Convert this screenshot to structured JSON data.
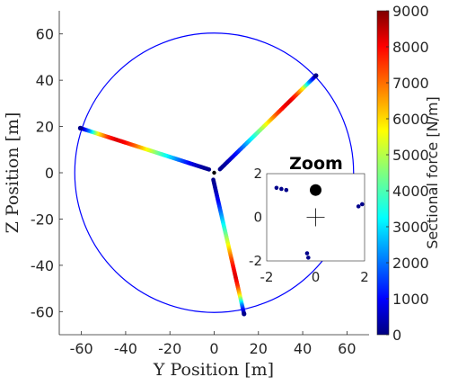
{
  "chart_data": [
    {
      "type": "scatter",
      "title": "",
      "xlabel": "Y Position [m]",
      "ylabel": "Z Position [m]",
      "xlim": [
        -70,
        70
      ],
      "ylim": [
        -70,
        70
      ],
      "xticks": [
        -60,
        -40,
        -20,
        0,
        20,
        40,
        60
      ],
      "yticks": [
        -60,
        -40,
        -20,
        0,
        20,
        40,
        60
      ],
      "xtick_labels": [
        "-60",
        "-40",
        "-20",
        "0",
        "20",
        "40",
        "60"
      ],
      "ytick_labels": [
        "-60",
        "-40",
        "-20",
        "0",
        "20",
        "40",
        "60"
      ],
      "rotor_circle": {
        "center": [
          0,
          0
        ],
        "radius": 63
      },
      "hub": [
        0,
        0
      ],
      "blades": [
        {
          "start": [
            -0.4,
            -3.0
          ],
          "end": [
            13.5,
            -61.0
          ],
          "force": [
            100,
            300,
            800,
            1500,
            2400,
            3300,
            4200,
            5200,
            6200,
            7200,
            7900,
            8200,
            7400,
            5800,
            2500,
            300
          ]
        },
        {
          "start": [
            2.6,
            1.5
          ],
          "end": [
            46.0,
            42.0
          ],
          "force": [
            100,
            300,
            800,
            1500,
            2400,
            3300,
            4200,
            5200,
            6200,
            7200,
            7900,
            8200,
            7400,
            5800,
            2500,
            300
          ]
        },
        {
          "start": [
            -2.3,
            1.4
          ],
          "end": [
            -60.5,
            19.3
          ],
          "force": [
            100,
            300,
            800,
            1500,
            2400,
            3300,
            4200,
            5200,
            6200,
            7200,
            7900,
            8200,
            7400,
            5800,
            2500,
            300
          ]
        }
      ],
      "colorbar": {
        "label": "Sectional force [N/m]",
        "range": [
          0,
          9000
        ],
        "ticks": [
          "0",
          "1000",
          "2000",
          "3000",
          "4000",
          "5000",
          "6000",
          "7000",
          "8000",
          "9000"
        ],
        "colormap": "jet"
      }
    },
    {
      "type": "scatter",
      "title": "Zoom",
      "xlim": [
        -2,
        2
      ],
      "ylim": [
        -2,
        2
      ],
      "xtick_labels": [
        "-2",
        "0",
        "2"
      ],
      "ytick_labels": [
        "-2",
        "0",
        "2"
      ],
      "hub": [
        0,
        0
      ],
      "hub_marker": [
        0,
        1.25
      ],
      "points": [
        [
          -1.6,
          1.35
        ],
        [
          -1.4,
          1.3
        ],
        [
          -1.2,
          1.25
        ],
        [
          1.75,
          0.5
        ],
        [
          1.9,
          0.6
        ],
        [
          -0.35,
          -1.65
        ],
        [
          -0.3,
          -1.85
        ]
      ]
    }
  ]
}
